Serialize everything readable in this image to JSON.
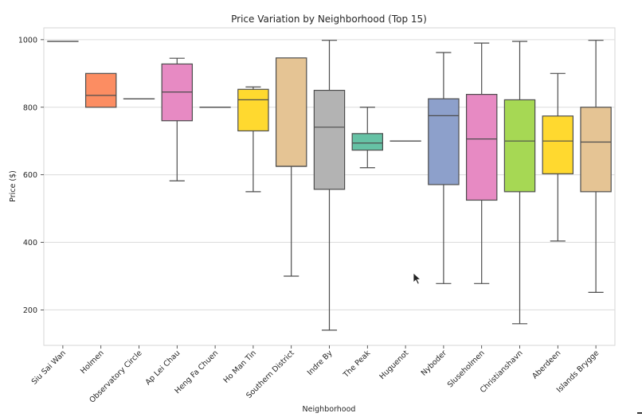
{
  "chart_data": {
    "type": "box",
    "title": "Price Variation by Neighborhood (Top 15)",
    "xlabel": "Neighborhood",
    "ylabel": "Price ($)",
    "ylim": [
      95,
      1035
    ],
    "yticks": [
      200,
      400,
      600,
      800,
      1000
    ],
    "grid": true,
    "categories": [
      "Siu Sai Wan",
      "Holmen",
      "Observatory Circle",
      "Ap Lei Chau",
      "Heng Fa Chuen",
      "Ho Man Tin",
      "Southern District",
      "Indre By",
      "The Peak",
      "Huguenot",
      "Nyboder",
      "Sluseholmen",
      "Christianshavn",
      "Aberdeen",
      "Islands Brygge"
    ],
    "boxes": [
      {
        "name": "Siu Sai Wan",
        "min": 995,
        "q1": 995,
        "median": 995,
        "q3": 995,
        "max": 995,
        "color": "#66c2a5"
      },
      {
        "name": "Holmen",
        "min": 800,
        "q1": 800,
        "median": 835,
        "q3": 900,
        "max": 900,
        "color": "#fc8d62"
      },
      {
        "name": "Observatory Circle",
        "min": 825,
        "q1": 825,
        "median": 825,
        "q3": 825,
        "max": 825,
        "color": "#8da0cb"
      },
      {
        "name": "Ap Lei Chau",
        "min": 582,
        "q1": 760,
        "median": 845,
        "q3": 928,
        "max": 945,
        "color": "#e78ac3"
      },
      {
        "name": "Heng Fa Chuen",
        "min": 800,
        "q1": 800,
        "median": 800,
        "q3": 800,
        "max": 800,
        "color": "#a6d854"
      },
      {
        "name": "Ho Man Tin",
        "min": 550,
        "q1": 730,
        "median": 822,
        "q3": 853,
        "max": 860,
        "color": "#ffd92f"
      },
      {
        "name": "Southern District",
        "min": 300,
        "q1": 625,
        "median": 625,
        "q3": 946,
        "max": 946,
        "color": "#e5c494"
      },
      {
        "name": "Indre By",
        "min": 140,
        "q1": 557,
        "median": 741,
        "q3": 850,
        "max": 998,
        "color": "#b3b3b3"
      },
      {
        "name": "The Peak",
        "min": 621,
        "q1": 673,
        "median": 694,
        "q3": 722,
        "max": 800,
        "color": "#66c2a5"
      },
      {
        "name": "Huguenot",
        "min": 700,
        "q1": 700,
        "median": 700,
        "q3": 700,
        "max": 700,
        "color": "#fc8d62"
      },
      {
        "name": "Nyboder",
        "min": 278,
        "q1": 571,
        "median": 775,
        "q3": 825,
        "max": 962,
        "color": "#8da0cb"
      },
      {
        "name": "Sluseholmen",
        "min": 278,
        "q1": 525,
        "median": 706,
        "q3": 838,
        "max": 990,
        "color": "#e78ac3"
      },
      {
        "name": "Christianshavn",
        "min": 159,
        "q1": 550,
        "median": 700,
        "q3": 822,
        "max": 995,
        "color": "#a6d854"
      },
      {
        "name": "Aberdeen",
        "min": 404,
        "q1": 603,
        "median": 700,
        "q3": 774,
        "max": 900,
        "color": "#ffd92f"
      },
      {
        "name": "Islands Brygge",
        "min": 252,
        "q1": 550,
        "median": 697,
        "q3": 800,
        "max": 998,
        "color": "#e5c494"
      }
    ]
  }
}
